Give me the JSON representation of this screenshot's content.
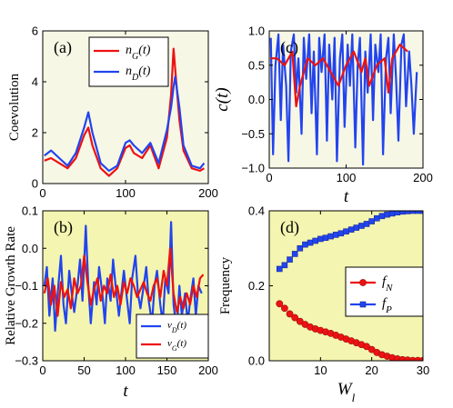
{
  "chart_data": [
    {
      "id": "a",
      "type": "line",
      "panel_label": "(a)",
      "ylabel": "Coevolution",
      "xlabel": "",
      "background": "#f7f7e6",
      "xlim": [
        0,
        200
      ],
      "ylim": [
        0,
        6
      ],
      "xticks": [
        "0",
        "100",
        "200"
      ],
      "yticks": [
        "0",
        "2",
        "4",
        "6"
      ],
      "legend": {
        "position": "top-right",
        "entries": [
          {
            "base": "n",
            "sub": "G",
            "tail": "(t)",
            "color": "#ee1111"
          },
          {
            "base": "n",
            "sub": "D",
            "tail": "(t)",
            "color": "#2244ee"
          }
        ]
      },
      "series": [
        {
          "name": "n_G(t)",
          "color": "#ee1111",
          "x": [
            2,
            10,
            20,
            30,
            40,
            50,
            55,
            60,
            70,
            80,
            90,
            100,
            105,
            110,
            120,
            130,
            140,
            150,
            155,
            158,
            160,
            165,
            170,
            180,
            190,
            195
          ],
          "y": [
            0.9,
            1.0,
            0.8,
            0.6,
            1.0,
            1.9,
            2.2,
            1.5,
            0.6,
            0.3,
            0.6,
            1.4,
            1.5,
            1.2,
            1.0,
            1.5,
            0.6,
            1.8,
            3.5,
            5.3,
            4.5,
            2.5,
            1.3,
            0.6,
            0.5,
            0.6
          ]
        },
        {
          "name": "n_D(t)",
          "color": "#2244ee",
          "x": [
            2,
            10,
            20,
            30,
            40,
            50,
            55,
            60,
            70,
            80,
            90,
            100,
            105,
            110,
            120,
            130,
            140,
            150,
            155,
            158,
            160,
            165,
            170,
            180,
            190,
            195
          ],
          "y": [
            1.1,
            1.3,
            1.0,
            0.7,
            1.2,
            2.2,
            2.8,
            2.0,
            0.8,
            0.5,
            0.7,
            1.6,
            1.7,
            1.5,
            1.2,
            1.6,
            0.8,
            2.1,
            3.0,
            3.8,
            4.2,
            3.0,
            1.5,
            0.7,
            0.6,
            0.8
          ]
        }
      ]
    },
    {
      "id": "c",
      "type": "line",
      "panel_label": "(c)",
      "ylabel": "c(t)",
      "xlabel": "t",
      "background": "#f7f7e6",
      "xlim": [
        0,
        200
      ],
      "ylim": [
        -1,
        1
      ],
      "xticks": [
        "0",
        "100",
        "200"
      ],
      "yticks": [
        "−1.0",
        "−0.5",
        "0.0",
        "0.5",
        "1.0"
      ],
      "series": [
        {
          "name": "blue",
          "color": "#2244ee",
          "x": [
            2,
            5,
            8,
            12,
            15,
            18,
            22,
            25,
            28,
            32,
            35,
            38,
            42,
            45,
            48,
            52,
            55,
            58,
            62,
            65,
            68,
            72,
            75,
            78,
            82,
            85,
            88,
            92,
            95,
            98,
            102,
            105,
            108,
            112,
            115,
            118,
            122,
            125,
            128,
            132,
            135,
            138,
            142,
            145,
            148,
            152,
            155,
            158,
            162,
            165,
            168,
            172,
            175,
            178,
            182,
            185,
            188,
            192
          ],
          "y": [
            0.9,
            -0.8,
            0.5,
            0.95,
            -0.3,
            0.8,
            0.2,
            -0.9,
            0.7,
            0.95,
            0.1,
            0.6,
            -0.5,
            0.9,
            0.3,
            0.95,
            -0.2,
            0.7,
            -0.8,
            0.9,
            0.4,
            0.95,
            -0.6,
            0.8,
            0.0,
            0.9,
            -0.9,
            0.6,
            0.95,
            -0.4,
            0.8,
            0.2,
            0.95,
            -0.7,
            0.5,
            0.9,
            -0.95,
            0.7,
            0.1,
            0.95,
            -0.3,
            0.8,
            0.4,
            0.95,
            -0.8,
            0.6,
            0.9,
            -0.2,
            0.95,
            0.3,
            -0.6,
            0.8,
            0.95,
            -0.1,
            0.7,
            0.2,
            -0.5,
            0.4
          ]
        },
        {
          "name": "red",
          "color": "#ee1111",
          "x": [
            2,
            10,
            20,
            30,
            35,
            40,
            50,
            60,
            70,
            80,
            90,
            100,
            110,
            120,
            125,
            130,
            140,
            150,
            155,
            160,
            170,
            180
          ],
          "y": [
            0.6,
            0.6,
            0.5,
            0.7,
            -0.1,
            0.2,
            0.6,
            0.5,
            0.6,
            0.4,
            0.2,
            0.5,
            0.7,
            0.4,
            0.6,
            0.2,
            0.5,
            0.6,
            0.1,
            0.6,
            0.8,
            0.7
          ]
        }
      ]
    },
    {
      "id": "b",
      "type": "line",
      "panel_label": "(b)",
      "ylabel": "Relative Growth Rate",
      "xlabel": "t",
      "background": "#f3f5b0",
      "xlim": [
        0,
        200
      ],
      "ylim": [
        -0.3,
        0.1
      ],
      "xticks": [
        "0",
        "50",
        "100",
        "150",
        "200"
      ],
      "yticks": [
        "−0.3",
        "−0.2",
        "−0.1",
        "0.0",
        "0.1"
      ],
      "legend": {
        "position": "bottom-right",
        "entries": [
          {
            "base": "v",
            "sub": "D",
            "tail": "(t)",
            "color": "#2244ee"
          },
          {
            "base": "v",
            "sub": "G",
            "tail": "(t)",
            "color": "#ee1111"
          }
        ]
      },
      "series": [
        {
          "name": "v_D(t)",
          "color": "#2244ee",
          "x": [
            2,
            5,
            8,
            12,
            15,
            18,
            22,
            25,
            28,
            32,
            35,
            38,
            42,
            45,
            48,
            52,
            55,
            58,
            62,
            65,
            68,
            72,
            75,
            78,
            82,
            85,
            88,
            92,
            95,
            98,
            102,
            105,
            108,
            112,
            115,
            118,
            122,
            125,
            128,
            132,
            135,
            138,
            142,
            145,
            148,
            152,
            155,
            158,
            162,
            165,
            168,
            172,
            175,
            178,
            182,
            185,
            188,
            192
          ],
          "y": [
            -0.1,
            -0.05,
            -0.18,
            -0.08,
            -0.22,
            -0.12,
            -0.02,
            -0.15,
            -0.2,
            -0.06,
            -0.12,
            -0.17,
            -0.1,
            -0.03,
            -0.14,
            0.06,
            -0.1,
            -0.2,
            -0.09,
            -0.15,
            -0.05,
            -0.12,
            -0.2,
            -0.08,
            -0.14,
            -0.03,
            -0.1,
            -0.18,
            -0.12,
            -0.06,
            -0.14,
            -0.2,
            -0.08,
            -0.02,
            -0.12,
            -0.16,
            -0.1,
            -0.05,
            -0.14,
            -0.2,
            -0.1,
            -0.06,
            -0.15,
            -0.2,
            -0.08,
            -0.12,
            0.07,
            -0.15,
            -0.22,
            -0.1,
            -0.18,
            -0.12,
            -0.2,
            -0.14,
            -0.08,
            -0.18,
            -0.1,
            -0.12
          ]
        },
        {
          "name": "v_G(t)",
          "color": "#ee1111",
          "x": [
            2,
            6,
            10,
            14,
            18,
            22,
            26,
            30,
            34,
            38,
            42,
            46,
            50,
            54,
            58,
            62,
            66,
            70,
            74,
            78,
            82,
            86,
            90,
            94,
            98,
            102,
            106,
            110,
            114,
            118,
            122,
            126,
            130,
            134,
            138,
            142,
            146,
            150,
            154,
            158,
            162,
            166,
            170,
            174,
            178,
            182,
            186,
            190,
            194
          ],
          "y": [
            -0.12,
            -0.08,
            -0.15,
            -0.1,
            -0.18,
            -0.09,
            -0.13,
            -0.11,
            -0.16,
            -0.08,
            -0.12,
            -0.1,
            -0.02,
            -0.09,
            -0.15,
            -0.11,
            -0.08,
            -0.14,
            -0.1,
            -0.12,
            -0.07,
            -0.13,
            -0.1,
            -0.15,
            -0.09,
            -0.12,
            -0.08,
            -0.1,
            -0.13,
            -0.11,
            -0.09,
            -0.12,
            -0.14,
            -0.1,
            -0.08,
            -0.13,
            -0.06,
            -0.1,
            0.0,
            -0.12,
            -0.17,
            -0.13,
            -0.16,
            -0.12,
            -0.15,
            -0.1,
            -0.13,
            -0.08,
            -0.07
          ]
        }
      ]
    },
    {
      "id": "d",
      "type": "scatter",
      "panel_label": "(d)",
      "ylabel": "Frequency",
      "xlabel": "W",
      "xlabel_sub": "l",
      "background": "#f3f5b0",
      "xlim": [
        0,
        30
      ],
      "ylim": [
        0,
        0.4
      ],
      "xticks": [
        "10",
        "20",
        "30"
      ],
      "yticks": [
        "0.0",
        "0.2",
        "0.4"
      ],
      "legend": {
        "position": "center-right",
        "entries": [
          {
            "base": "f",
            "sub": "N",
            "tail": "",
            "color": "#ee1111",
            "marker": "circle"
          },
          {
            "base": "f",
            "sub": "P",
            "tail": "",
            "color": "#2244ee",
            "marker": "square"
          }
        ]
      },
      "series": [
        {
          "name": "f_N",
          "color": "#ee1111",
          "marker": "circle",
          "x": [
            2,
            3,
            4,
            5,
            6,
            7,
            8,
            9,
            10,
            11,
            12,
            13,
            14,
            15,
            16,
            17,
            18,
            19,
            20,
            21,
            22,
            23,
            24,
            25,
            26,
            27,
            28,
            29,
            30
          ],
          "y": [
            0.152,
            0.14,
            0.125,
            0.115,
            0.105,
            0.097,
            0.09,
            0.085,
            0.081,
            0.077,
            0.073,
            0.068,
            0.063,
            0.058,
            0.053,
            0.048,
            0.043,
            0.038,
            0.03,
            0.022,
            0.016,
            0.012,
            0.008,
            0.005,
            0.003,
            0.002,
            0.001,
            0.001,
            0.001
          ]
        },
        {
          "name": "f_P",
          "color": "#2244ee",
          "marker": "square",
          "x": [
            2,
            3,
            4,
            5,
            6,
            7,
            8,
            9,
            10,
            11,
            12,
            13,
            14,
            15,
            16,
            17,
            18,
            19,
            20,
            21,
            22,
            23,
            24,
            25,
            26,
            27,
            28,
            29,
            30
          ],
          "y": [
            0.245,
            0.255,
            0.27,
            0.285,
            0.3,
            0.31,
            0.315,
            0.32,
            0.325,
            0.328,
            0.332,
            0.336,
            0.34,
            0.345,
            0.35,
            0.355,
            0.36,
            0.365,
            0.372,
            0.38,
            0.386,
            0.39,
            0.393,
            0.396,
            0.398,
            0.399,
            0.4,
            0.4,
            0.4
          ]
        }
      ]
    }
  ]
}
